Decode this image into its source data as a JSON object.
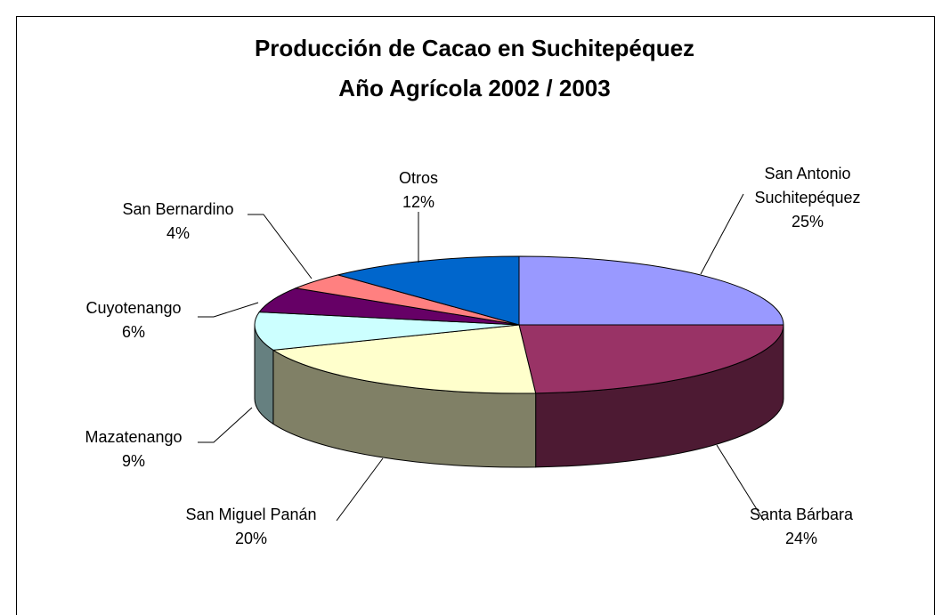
{
  "chart_data": {
    "type": "pie3d",
    "title": "Producción de Cacao en Suchitepéquez",
    "subtitle": "Año Agrícola 2002 / 2003",
    "categories": [
      "San Antonio Suchitepéquez",
      "Santa Bárbara",
      "San Miguel Panán",
      "Mazatenango",
      "Cuyotenango",
      "San Bernardino",
      "Otros"
    ],
    "values": [
      25,
      24,
      20,
      9,
      6,
      4,
      12
    ],
    "value_labels": [
      "25%",
      "24%",
      "20%",
      "9%",
      "6%",
      "4%",
      "12%"
    ],
    "colors": [
      "#9999ff",
      "#993366",
      "#ffffcc",
      "#ccffff",
      "#660066",
      "#ff8080",
      "#0066cc"
    ]
  }
}
